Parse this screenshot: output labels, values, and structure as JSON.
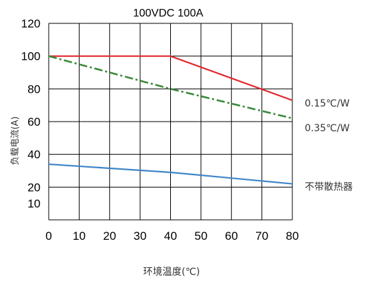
{
  "chart_data": {
    "type": "line",
    "title": "100VDC 100A",
    "xlabel": "环境温度(℃)",
    "ylabel": "负载电流(A)",
    "xlim": [
      0,
      80
    ],
    "ylim": [
      0,
      120
    ],
    "x_ticks": [
      0,
      10,
      20,
      30,
      40,
      50,
      60,
      70,
      80
    ],
    "y_ticks": [
      10,
      20,
      40,
      60,
      80,
      100,
      120
    ],
    "grid": true,
    "series": [
      {
        "name": "0.15℃/W",
        "color": "#e0282e",
        "style": "solid",
        "x": [
          0,
          40,
          80
        ],
        "y": [
          100,
          100,
          73
        ]
      },
      {
        "name": "0.35℃/W",
        "color": "#3a8a3a",
        "style": "dashdot",
        "x": [
          0,
          40,
          80
        ],
        "y": [
          100,
          80,
          62
        ]
      },
      {
        "name": "不带散热器",
        "color": "#3f86c8",
        "style": "solid",
        "x": [
          0,
          40,
          80
        ],
        "y": [
          34,
          29,
          22
        ]
      }
    ]
  }
}
